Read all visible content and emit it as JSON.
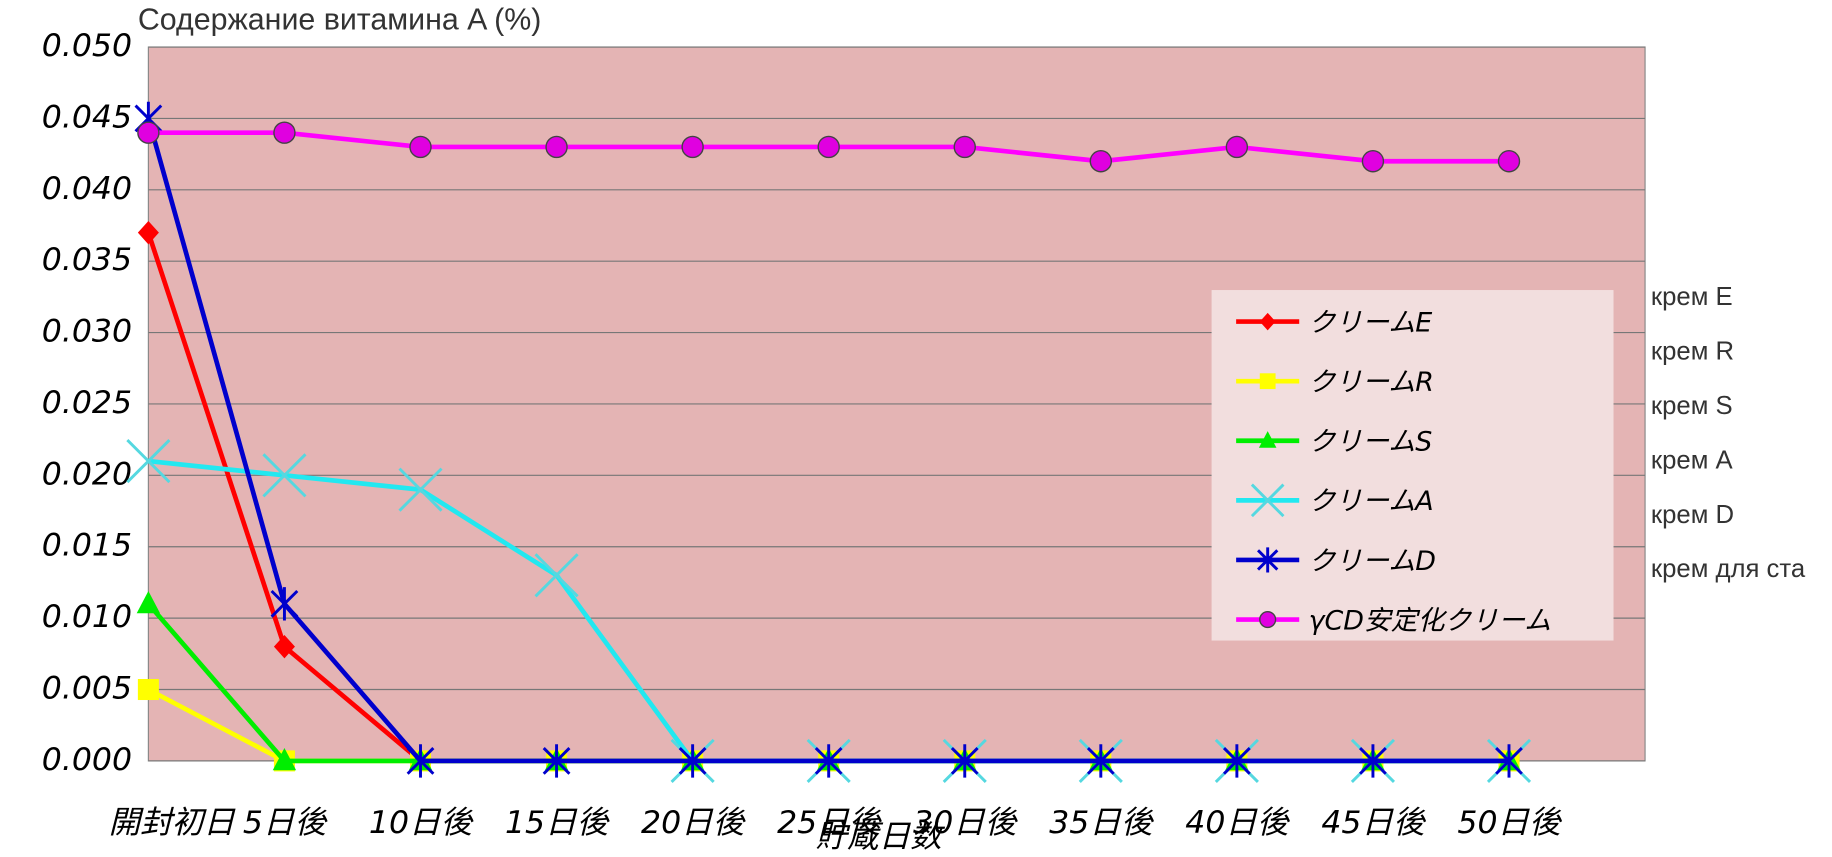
{
  "chart_data": {
    "type": "line",
    "title": "Содержание витамина A (%)",
    "x_label": "貯蔵日数",
    "categories": [
      "開封初日",
      "5日後",
      "10日後",
      "15日後",
      "20日後",
      "25日後",
      "30日後",
      "35日後",
      "40日後",
      "45日後",
      "50日後"
    ],
    "series": [
      {
        "name": "クリームE",
        "color": "#ff0000",
        "marker": "diamond",
        "values": [
          0.037,
          0.008,
          0,
          0,
          0,
          0,
          0,
          0,
          0,
          0,
          0
        ]
      },
      {
        "name": "クリームR",
        "color": "#ffff00",
        "marker": "square",
        "values": [
          0.005,
          0,
          0,
          0,
          0,
          0,
          0,
          0,
          0,
          0,
          0
        ]
      },
      {
        "name": "クリームS",
        "color": "#00ee00",
        "marker": "triangle",
        "values": [
          0.011,
          0,
          0,
          0,
          0,
          0,
          0,
          0,
          0,
          0,
          0
        ]
      },
      {
        "name": "クリームA",
        "color": "#22e8f0",
        "marker": "x",
        "values": [
          0.021,
          0.02,
          0.019,
          0.013,
          0,
          0,
          0,
          0,
          0,
          0,
          0
        ]
      },
      {
        "name": "クリームD",
        "color": "#0000cc",
        "marker": "star",
        "values": [
          0.045,
          0.011,
          0,
          0,
          0,
          0,
          0,
          0,
          0,
          0,
          0
        ]
      },
      {
        "name": "γCD安定化クリーム",
        "color": "#ff00ff",
        "marker": "circle",
        "values": [
          0.044,
          0.044,
          0.043,
          0.043,
          0.043,
          0.043,
          0.043,
          0.042,
          0.043,
          0.042,
          0.042
        ]
      }
    ],
    "ylim": [
      0,
      0.05
    ],
    "yticks": [
      {
        "value": 0,
        "label": "0.000"
      },
      {
        "value": 0.005,
        "label": "0.005"
      },
      {
        "value": 0.01,
        "label": "0.010"
      },
      {
        "value": 0.015,
        "label": "0.015"
      },
      {
        "value": 0.02,
        "label": "0.020"
      },
      {
        "value": 0.025,
        "label": "0.025"
      },
      {
        "value": 0.03,
        "label": "0.030"
      },
      {
        "value": 0.035,
        "label": "0.035"
      },
      {
        "value": 0.04,
        "label": "0.040"
      },
      {
        "value": 0.045,
        "label": "0.045"
      },
      {
        "value": 0.05,
        "label": "0.050"
      }
    ],
    "grid": true,
    "plot_background": "#e4b4b4",
    "legend": "right",
    "annotations": [
      "крем E",
      "крем R",
      "крем S",
      "крем A",
      "крем D",
      "крем для ста"
    ]
  }
}
